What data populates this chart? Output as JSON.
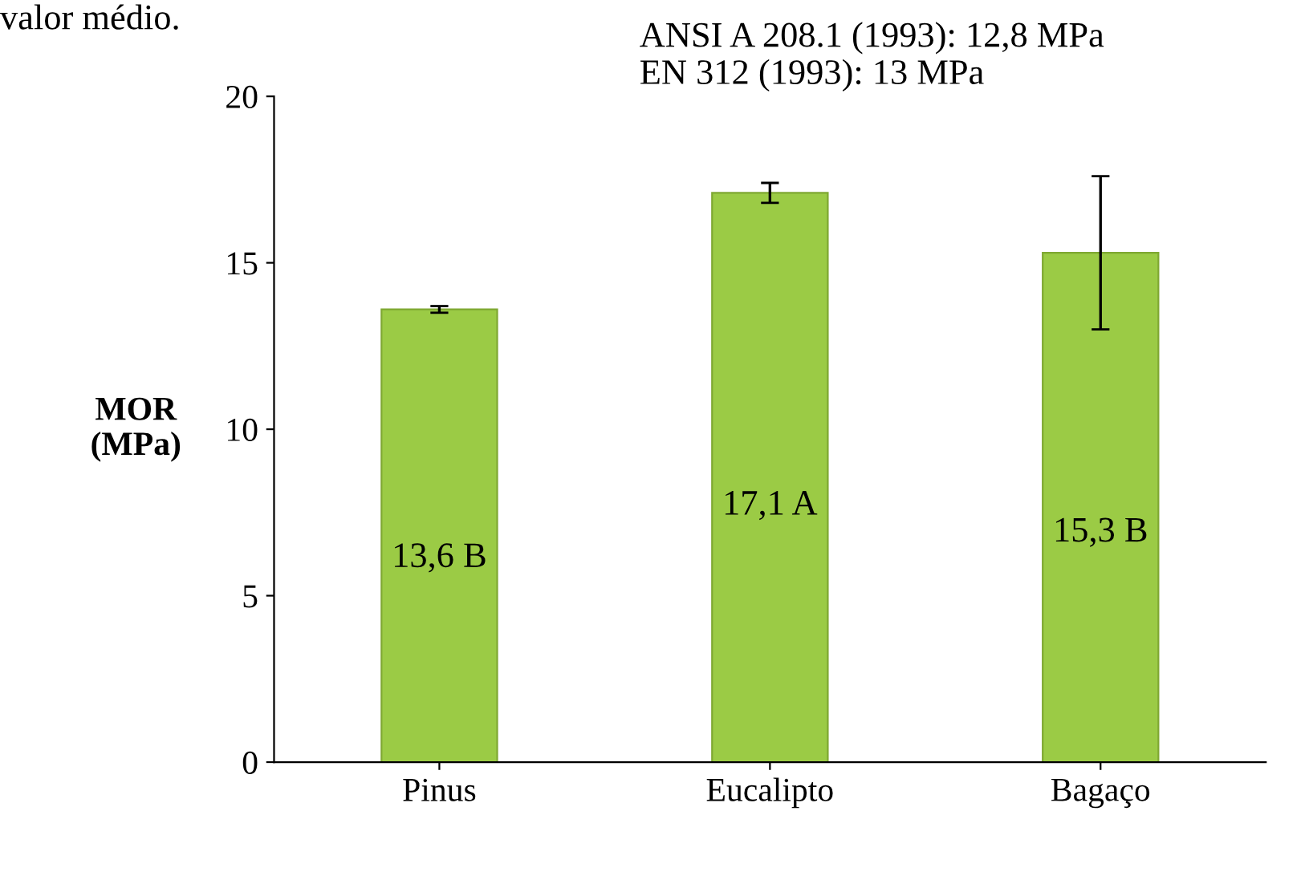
{
  "chart_data": {
    "type": "bar",
    "ylabel": "MOR\n(MPa)",
    "categories": [
      "Pinus",
      "Eucalipto",
      "Bagaço"
    ],
    "values": [
      13.6,
      17.1,
      15.3
    ],
    "errors": [
      0.1,
      0.3,
      2.3
    ],
    "value_labels": [
      "13,6 B",
      "17,1 A",
      "15,3 B"
    ],
    "color": "#9bcb45",
    "ylim": [
      0,
      20
    ],
    "yticks": [
      0,
      5,
      10,
      15,
      20
    ],
    "grid": false,
    "annotations": [
      "valor médio.",
      "ANSI A 208.1 (1993): 12,8 MPa\nEN 312 (1993): 13 MPa"
    ]
  }
}
